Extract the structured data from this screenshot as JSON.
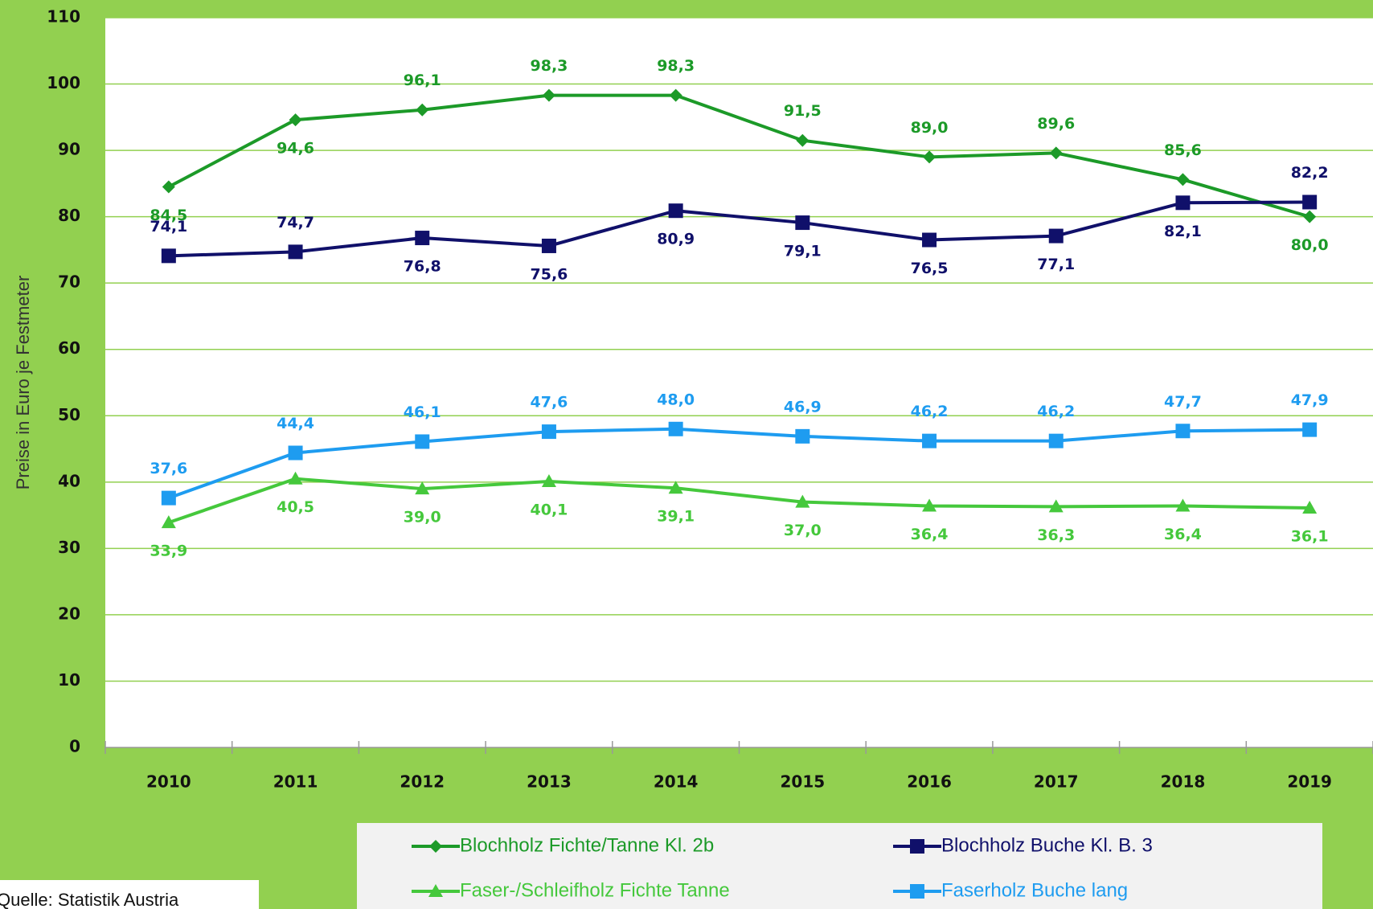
{
  "chart_data": {
    "type": "line",
    "y_label": "Preise in Euro je Festmeter",
    "source": "Quelle: Statistik Austria",
    "categories": [
      "2010",
      "2011",
      "2012",
      "2013",
      "2014",
      "2015",
      "2016",
      "2017",
      "2018",
      "2019"
    ],
    "ylim": [
      0,
      110
    ],
    "yticks": [
      0,
      10,
      20,
      30,
      40,
      50,
      60,
      70,
      80,
      90,
      100,
      110
    ],
    "grid": true,
    "series": [
      {
        "name": "Blochholz Fichte/Tanne Kl. 2b",
        "color": "#1c9a28",
        "marker": "diamond",
        "values": [
          84.5,
          94.6,
          96.1,
          98.3,
          98.3,
          91.5,
          89.0,
          89.6,
          85.6,
          80.0
        ],
        "value_labels": [
          "84,5",
          "94,6",
          "96,1",
          "98,3",
          "98,3",
          "91,5",
          "89,0",
          "89,6",
          "85,6",
          "80,0"
        ]
      },
      {
        "name": "Blochholz Buche Kl. B. 3",
        "color": "#10106a",
        "marker": "square",
        "values": [
          74.1,
          74.7,
          76.8,
          75.6,
          80.9,
          79.1,
          76.5,
          77.1,
          82.1,
          82.2
        ],
        "value_labels": [
          "74,1",
          "74,7",
          "76,8",
          "75,6",
          "80,9",
          "79,1",
          "76,5",
          "77,1",
          "82,1",
          "82,2"
        ]
      },
      {
        "name": "Faser-/Schleifholz Fichte Tanne",
        "color": "#45c83c",
        "marker": "triangle",
        "values": [
          33.9,
          40.5,
          39.0,
          40.1,
          39.1,
          37.0,
          36.4,
          36.3,
          36.4,
          36.1
        ],
        "value_labels": [
          "33,9",
          "40,5",
          "39,0",
          "40,1",
          "39,1",
          "37,0",
          "36,4",
          "36,3",
          "36,4",
          "36,1"
        ]
      },
      {
        "name": "Faserholz Buche lang",
        "color": "#1e9cf0",
        "marker": "square",
        "values": [
          37.6,
          44.4,
          46.1,
          47.6,
          48.0,
          46.9,
          46.2,
          46.2,
          47.7,
          47.9
        ],
        "value_labels": [
          "37,6",
          "44,4",
          "46,1",
          "47,6",
          "48,0",
          "46,9",
          "46,2",
          "46,2",
          "47,7",
          "47,9"
        ]
      }
    ]
  }
}
